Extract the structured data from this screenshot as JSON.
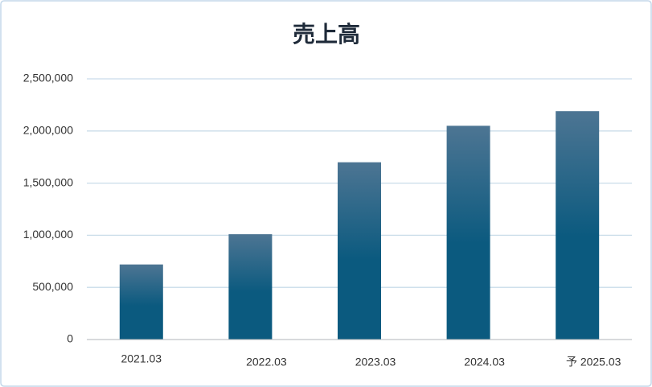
{
  "chart_data": {
    "type": "bar",
    "title": "売上高",
    "categories": [
      "2021.03",
      "2022.03",
      "2023.03",
      "2024.03",
      "予 2025.03"
    ],
    "values": [
      720000,
      1010000,
      1700000,
      2050000,
      2190000
    ],
    "color": "#0b5a7f",
    "gradient_top": "#4d7593",
    "ylim": [
      0,
      2500000
    ],
    "yticks": [
      0,
      {
        "value": 500000,
        "label": "500,000"
      },
      {
        "value": 1000000,
        "label": "1,000,000"
      },
      {
        "value": 1500000,
        "label": "1,500,000"
      },
      {
        "value": 2000000,
        "label": "2,000,000"
      },
      {
        "value": 2500000,
        "label": "2,500,000"
      }
    ],
    "grid": true
  }
}
